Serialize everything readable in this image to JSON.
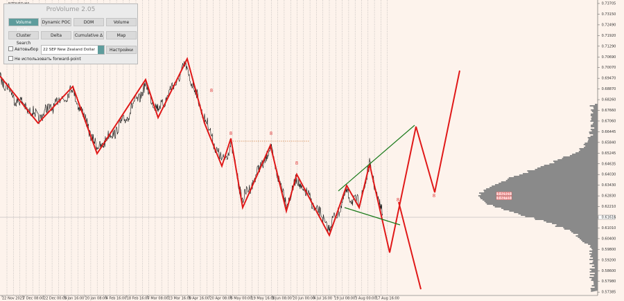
{
  "header": {
    "symbol": "NZDUSD,H4"
  },
  "panel": {
    "title": "ProVolume 2.05",
    "buttons": [
      "Volume Profile",
      "Dynamic POC",
      "DOM",
      "Volume",
      "Cluster Search",
      "Delta",
      "Cumulative Δ",
      "Map"
    ],
    "auto_select": "Автовыбор",
    "instrument": "22 SEP New Zealand Dollar",
    "settings": "Настройки",
    "forward_point": "Не использовать forward-point"
  },
  "price_axis": {
    "labels": [
      "0.73705",
      "0.73150",
      "0.72490",
      "0.71920",
      "0.71290",
      "0.70690",
      "0.70070",
      "0.69470",
      "0.68870",
      "0.68260",
      "0.67660",
      "0.67060",
      "0.66445",
      "0.65840",
      "0.65245",
      "0.64635",
      "0.64030",
      "0.63430",
      "0.62830",
      "0.62210",
      "0.61616",
      "0.61010",
      "0.60400",
      "0.59800",
      "0.59200",
      "0.58600",
      "0.57980",
      "0.57385"
    ]
  },
  "levels": [
    "0.62925",
    "0.62755"
  ],
  "time_axis": {
    "labels": [
      "22 Nov 2021",
      "7 Dec 08:00",
      "22 Dec 00:00",
      "5 Jan 16:00",
      "20 Jan 08:00",
      "4 Feb 16:00",
      "18 Feb 16:00",
      "7 Mar 08:00",
      "23 Mar 16:00",
      "5 Apr 16:00",
      "20 Apr 08:00",
      "5 May 00:00",
      "19 May 16:00",
      "3 Jun 08:00",
      "20 Jun 00:00",
      "4 Jul 16:00",
      "19 Jul 08:00",
      "3 Aug 00:00",
      "17 Aug 16:00"
    ]
  },
  "markers": [
    "8",
    "8",
    "8",
    "8",
    "8",
    "8"
  ]
}
